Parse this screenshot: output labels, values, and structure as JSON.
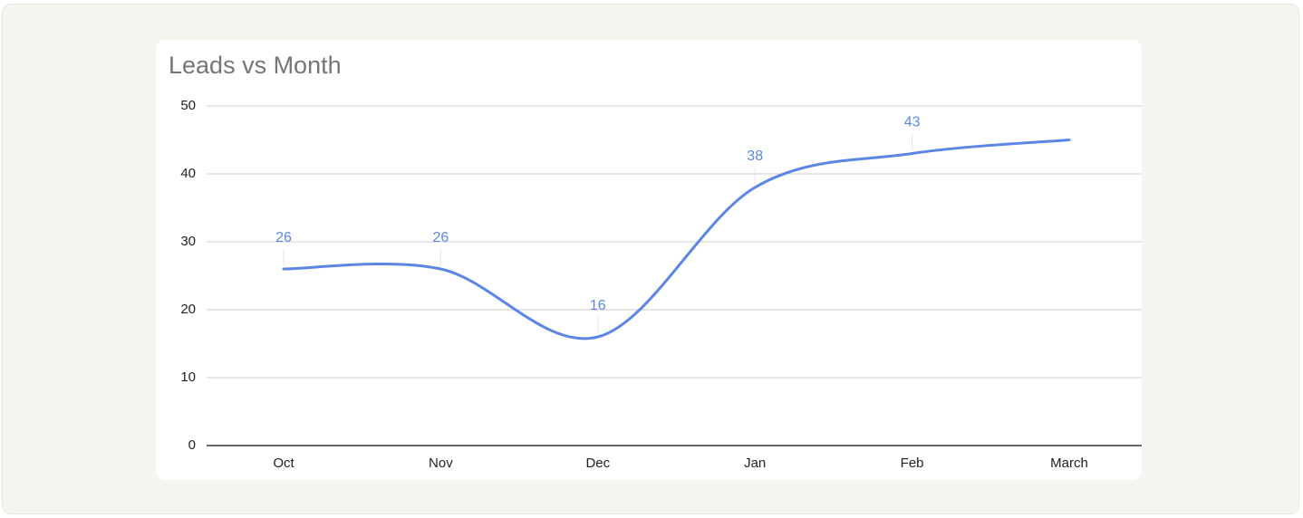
{
  "chart_data": {
    "type": "line",
    "title": "Leads vs Month",
    "categories": [
      "Oct",
      "Nov",
      "Dec",
      "Jan",
      "Feb",
      "March"
    ],
    "values": [
      26,
      26,
      16,
      38,
      43,
      45
    ],
    "value_labels": [
      "26",
      "26",
      "16",
      "38",
      "43",
      null
    ],
    "color": "#5b86e5",
    "smooth": true,
    "ylim": [
      0,
      50
    ],
    "yticks": [
      0,
      10,
      20,
      30,
      40,
      50
    ],
    "grid": true
  }
}
